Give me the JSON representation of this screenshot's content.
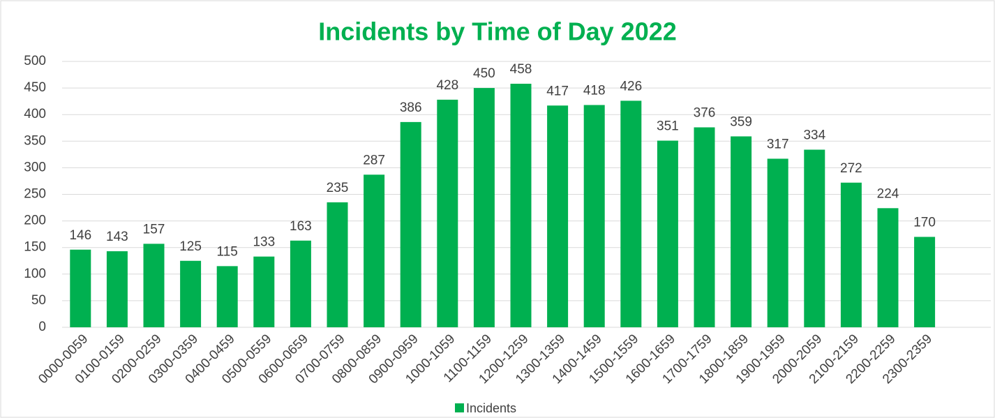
{
  "chart_data": {
    "type": "bar",
    "title": "Incidents by Time of Day 2022",
    "categories": [
      "0000-0059",
      "0100-0159",
      "0200-0259",
      "0300-0359",
      "0400-0459",
      "0500-0559",
      "0600-0659",
      "0700-0759",
      "0800-0859",
      "0900-0959",
      "1000-1059",
      "1100-1159",
      "1200-1259",
      "1300-1359",
      "1400-1459",
      "1500-1559",
      "1600-1659",
      "1700-1759",
      "1800-1859",
      "1900-1959",
      "2000-2059",
      "2100-2159",
      "2200-2259",
      "2300-2359"
    ],
    "series": [
      {
        "name": "Incidents",
        "color": "#00b050",
        "values": [
          146,
          143,
          157,
          125,
          115,
          133,
          163,
          235,
          287,
          386,
          428,
          450,
          458,
          417,
          418,
          426,
          351,
          376,
          359,
          317,
          334,
          272,
          224,
          170
        ]
      }
    ],
    "ylim": [
      0,
      500
    ],
    "yticks": [
      0,
      50,
      100,
      150,
      200,
      250,
      300,
      350,
      400,
      450,
      500
    ],
    "grid": true,
    "legend": "bottom"
  }
}
